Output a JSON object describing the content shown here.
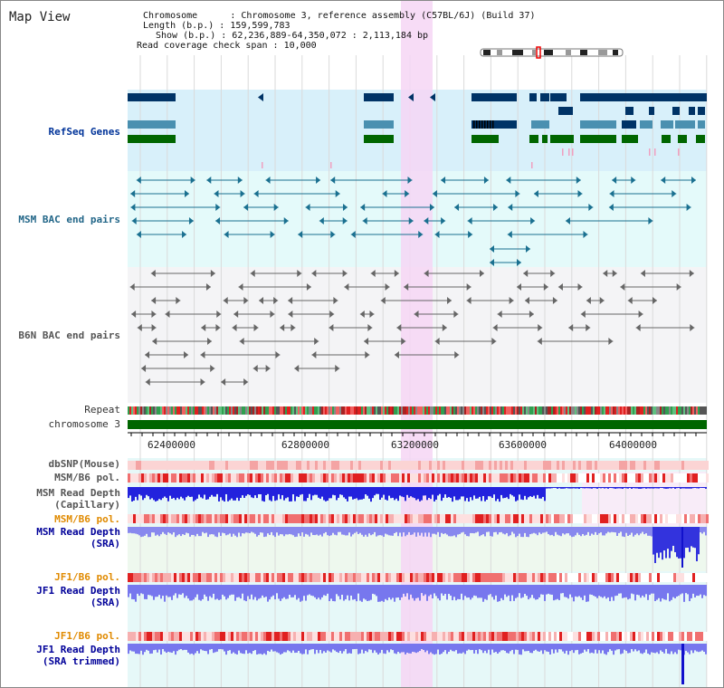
{
  "title": "Map View",
  "info": {
    "chromosome_label": "Chromosome",
    "chromosome_value": "Chromosome 3, reference assembly (C57BL/6J) (Build 37)",
    "length_label": "Length (b.p.)",
    "length_value": "159,599,783",
    "show_label": "Show (b.p.)",
    "show_value": "62,236,889-64,350,072 : 2,113,184 bp",
    "coverage_label": "Read coverage check span",
    "coverage_value": "10,000"
  },
  "tracks": {
    "refseq": "RefSeq Genes",
    "msm_bac": "MSM BAC end pairs",
    "b6n_bac": "B6N BAC end pairs",
    "repeat": "Repeat",
    "chromosome": "chromosome 3",
    "dbsnp": "dbSNP(Mouse)",
    "msm_b6_pol_1": "MSM/B6 pol.",
    "msm_depth_cap_1": "MSM Read Depth",
    "msm_depth_cap_2": "(Capillary)",
    "msm_b6_pol_2": "MSM/B6 pol.",
    "msm_depth_sra_1": "MSM Read Depth",
    "msm_depth_sra_2": "(SRA)",
    "jf1_b6_pol_1": "JF1/B6 pol.",
    "jf1_depth_sra_1": "JF1 Read Depth",
    "jf1_depth_sra_2": "(SRA)",
    "jf1_b6_pol_2": "JF1/B6 pol.",
    "jf1_depth_trim_1": "JF1 Read Depth",
    "jf1_depth_trim_2": "(SRA trimmed)"
  },
  "ruler": {
    "ticks": [
      "62400000",
      "62800000",
      "63200000",
      "63600000",
      "64000000"
    ]
  },
  "colors": {
    "refseq_bg": "#d8f0fa",
    "msm_bg": "#e4fafa",
    "b6n_bg": "#f4f4f6",
    "highlight": "#f6d6f4",
    "gene_dark": "#003366",
    "gene_teal": "#4a90b0",
    "gene_green": "#006600",
    "chromosome": "#006600"
  }
}
